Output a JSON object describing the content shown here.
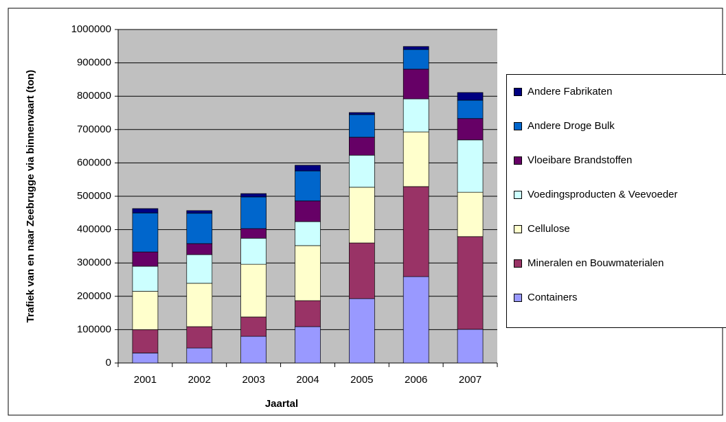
{
  "chart_data": {
    "type": "stacked_bar",
    "x_label": "Jaartal",
    "y_label": "Trafiek van en naar Zeebrugge via binnenvaart (ton)",
    "categories": [
      "2001",
      "2002",
      "2003",
      "2004",
      "2005",
      "2006",
      "2007"
    ],
    "series": [
      {
        "name": "Containers",
        "color": "#9999ff",
        "values": [
          30000,
          45000,
          80000,
          109000,
          193000,
          259000,
          101000
        ]
      },
      {
        "name": "Mineralen en Bouwmaterialen",
        "color": "#993366",
        "values": [
          70000,
          64000,
          58000,
          78000,
          167000,
          270000,
          278000
        ]
      },
      {
        "name": "Cellulose",
        "color": "#ffffcc",
        "values": [
          115000,
          130000,
          158000,
          165000,
          167000,
          164000,
          133000
        ]
      },
      {
        "name": "Voedingsproducten & Veevoeder",
        "color": "#ccffff",
        "values": [
          75000,
          86000,
          78000,
          72000,
          96000,
          99000,
          157000
        ]
      },
      {
        "name": "Vloeibare Brandstoffen",
        "color": "#660066",
        "values": [
          43000,
          33000,
          29000,
          62000,
          54000,
          89000,
          64000
        ]
      },
      {
        "name": "Andere Droge Bulk",
        "color": "#0066cc",
        "values": [
          117000,
          91000,
          95000,
          90000,
          68000,
          59000,
          55000
        ]
      },
      {
        "name": "Andere Fabrikaten",
        "color": "#000080",
        "values": [
          13000,
          8000,
          10000,
          17000,
          6000,
          9000,
          23000
        ]
      }
    ],
    "ylim": [
      0,
      1000000
    ],
    "yticks": [
      0,
      100000,
      200000,
      300000,
      400000,
      500000,
      600000,
      700000,
      800000,
      900000,
      1000000
    ],
    "grid": true,
    "legend": "right"
  }
}
